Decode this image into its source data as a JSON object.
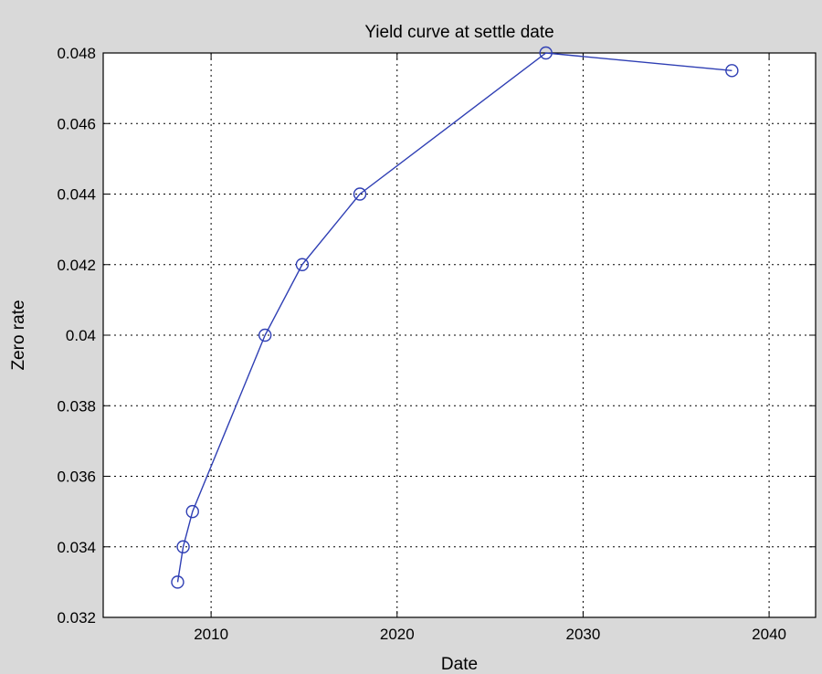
{
  "chart_data": {
    "type": "line",
    "title": "Yield curve at settle date",
    "xlabel": "Date",
    "ylabel": "Zero rate",
    "xlim": [
      2004.2,
      2042.5
    ],
    "ylim": [
      0.032,
      0.048
    ],
    "xticks": [
      2010,
      2020,
      2030,
      2040
    ],
    "yticks": [
      0.032,
      0.034,
      0.036,
      0.038,
      0.04,
      0.042,
      0.044,
      0.046,
      0.048
    ],
    "xtick_labels": [
      "2010",
      "2020",
      "2030",
      "2040"
    ],
    "ytick_labels": [
      "0.032",
      "0.034",
      "0.036",
      "0.038",
      "0.04",
      "0.042",
      "0.044",
      "0.046",
      "0.048"
    ],
    "grid": true,
    "grid_style": "dotted",
    "series": [
      {
        "color": "#2f3fb4",
        "marker": "circle",
        "x": [
          2008.2,
          2008.5,
          2009.0,
          2012.9,
          2014.9,
          2018.0,
          2028.0,
          2038.0
        ],
        "y": [
          0.033,
          0.034,
          0.035,
          0.04,
          0.042,
          0.044,
          0.048,
          0.0475
        ]
      }
    ]
  }
}
